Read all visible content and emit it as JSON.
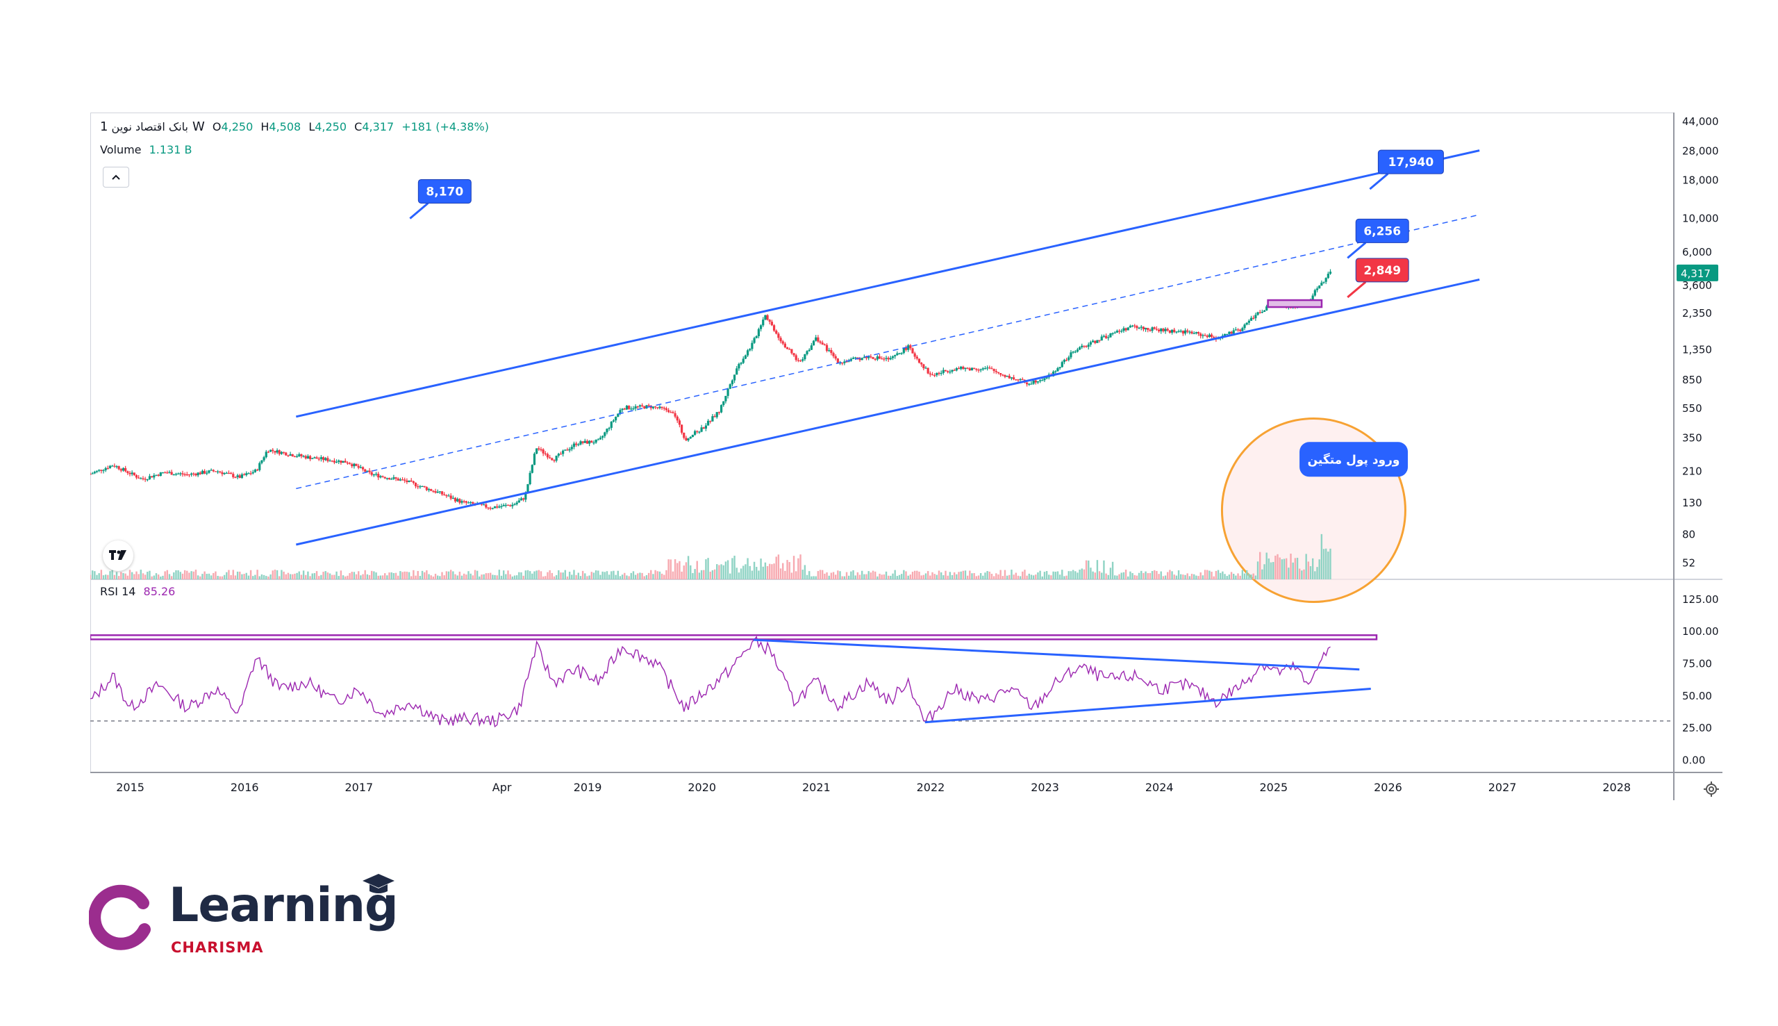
{
  "legend": {
    "symbol": "بانک اقتصاد نوین",
    "interval": "1W",
    "o_label": "O",
    "o": "4,250",
    "h_label": "H",
    "h": "4,508",
    "l_label": "L",
    "l": "4,250",
    "c_label": "C",
    "c": "4,317",
    "change": "+181 (+4.38%)",
    "volume_label": "Volume",
    "volume_value": "1.131 B",
    "rsi_label": "RSI 14",
    "rsi_value": "85.26"
  },
  "colors": {
    "up": "#089981",
    "down": "#f23645",
    "channel": "#2962ff",
    "rsi": "#9c27b0",
    "highlight_ring": "#f7a233",
    "brand_purple": "#9b2d8e",
    "brand_navy": "#1f2a44",
    "brand_red": "#c8102e"
  },
  "icons": {
    "collapse": "chevron-up-icon",
    "tradingview": "tradingview-logo-icon",
    "settings": "gear-icon"
  },
  "chart_data": [
    {
      "type": "candlestick",
      "scale": "log",
      "price_axis_ticks": [
        "44,000",
        "28,000",
        "18,000",
        "10,000",
        "6,000",
        "3,600",
        "2,350",
        "1,350",
        "850",
        "550",
        "350",
        "210",
        "130",
        "80",
        "52"
      ],
      "price_axis_values": [
        44000,
        28000,
        18000,
        10000,
        6000,
        3600,
        2350,
        1350,
        850,
        550,
        350,
        210,
        130,
        80,
        52
      ],
      "current_price_label": "4,317",
      "current_price": 4317,
      "time_axis_ticks": [
        "2015",
        "2016",
        "2017",
        "Apr",
        "2019",
        "2020",
        "2021",
        "2022",
        "2023",
        "2024",
        "2025",
        "2026",
        "2027",
        "2028"
      ],
      "time_axis_values": [
        2015.0,
        2016.0,
        2017.0,
        2018.25,
        2019.0,
        2020.0,
        2021.0,
        2022.0,
        2023.0,
        2024.0,
        2025.0,
        2026.0,
        2027.0,
        2028.0
      ],
      "x_range": [
        2014.65,
        2028.5
      ],
      "y_range": [
        40,
        50000
      ],
      "price_path": [
        {
          "t": 2014.65,
          "p": 200
        },
        {
          "t": 2014.85,
          "p": 230
        },
        {
          "t": 2015.1,
          "p": 185
        },
        {
          "t": 2015.3,
          "p": 205
        },
        {
          "t": 2015.5,
          "p": 198
        },
        {
          "t": 2015.75,
          "p": 210
        },
        {
          "t": 2015.95,
          "p": 190
        },
        {
          "t": 2016.1,
          "p": 210
        },
        {
          "t": 2016.2,
          "p": 290
        },
        {
          "t": 2016.4,
          "p": 270
        },
        {
          "t": 2016.6,
          "p": 255
        },
        {
          "t": 2016.9,
          "p": 240
        },
        {
          "t": 2017.1,
          "p": 200
        },
        {
          "t": 2017.4,
          "p": 180
        },
        {
          "t": 2017.7,
          "p": 150
        },
        {
          "t": 2017.9,
          "p": 130
        },
        {
          "t": 2018.15,
          "p": 120
        },
        {
          "t": 2018.35,
          "p": 125
        },
        {
          "t": 2018.45,
          "p": 140
        },
        {
          "t": 2018.55,
          "p": 300
        },
        {
          "t": 2018.7,
          "p": 250
        },
        {
          "t": 2018.9,
          "p": 320
        },
        {
          "t": 2019.1,
          "p": 330
        },
        {
          "t": 2019.3,
          "p": 550
        },
        {
          "t": 2019.55,
          "p": 560
        },
        {
          "t": 2019.75,
          "p": 520
        },
        {
          "t": 2019.85,
          "p": 340
        },
        {
          "t": 2020.0,
          "p": 400
        },
        {
          "t": 2020.15,
          "p": 520
        },
        {
          "t": 2020.3,
          "p": 1000
        },
        {
          "t": 2020.45,
          "p": 1500
        },
        {
          "t": 2020.55,
          "p": 2300
        },
        {
          "t": 2020.7,
          "p": 1500
        },
        {
          "t": 2020.85,
          "p": 1100
        },
        {
          "t": 2021.0,
          "p": 1600
        },
        {
          "t": 2021.2,
          "p": 1100
        },
        {
          "t": 2021.45,
          "p": 1200
        },
        {
          "t": 2021.65,
          "p": 1150
        },
        {
          "t": 2021.8,
          "p": 1400
        },
        {
          "t": 2022.0,
          "p": 900
        },
        {
          "t": 2022.2,
          "p": 1000
        },
        {
          "t": 2022.5,
          "p": 1000
        },
        {
          "t": 2022.65,
          "p": 900
        },
        {
          "t": 2022.85,
          "p": 800
        },
        {
          "t": 2023.05,
          "p": 900
        },
        {
          "t": 2023.25,
          "p": 1300
        },
        {
          "t": 2023.5,
          "p": 1600
        },
        {
          "t": 2023.75,
          "p": 1900
        },
        {
          "t": 2024.0,
          "p": 1800
        },
        {
          "t": 2024.25,
          "p": 1750
        },
        {
          "t": 2024.5,
          "p": 1600
        },
        {
          "t": 2024.7,
          "p": 1800
        },
        {
          "t": 2024.85,
          "p": 2300
        },
        {
          "t": 2025.0,
          "p": 2700
        },
        {
          "t": 2025.15,
          "p": 2600
        },
        {
          "t": 2025.3,
          "p": 2700
        },
        {
          "t": 2025.4,
          "p": 3600
        },
        {
          "t": 2025.5,
          "p": 4317
        }
      ],
      "channel": {
        "upper": [
          {
            "t": 2016.45,
            "p": 480
          },
          {
            "t": 2026.8,
            "p": 28000
          }
        ],
        "middle": [
          {
            "t": 2016.45,
            "p": 160
          },
          {
            "t": 2026.8,
            "p": 10500
          }
        ],
        "lower": [
          {
            "t": 2016.45,
            "p": 68
          },
          {
            "t": 2026.8,
            "p": 3900
          }
        ]
      },
      "support_zone": {
        "t_start": 2024.95,
        "t_end": 2025.42,
        "p": 2700
      },
      "annotations": [
        {
          "text": "8,170",
          "t": 2017.75,
          "p": 15000,
          "color": "#2962ff"
        },
        {
          "text": "17,940",
          "t": 2026.2,
          "p": 23500,
          "color": "#2962ff"
        },
        {
          "text": "6,256",
          "t": 2025.95,
          "p": 8200,
          "color": "#2962ff"
        },
        {
          "text": "2,849",
          "t": 2025.95,
          "p": 4500,
          "color": "#f23645"
        },
        {
          "text": "ورود پول متگین",
          "t": 2025.7,
          "p": 250,
          "color": "#2962ff"
        }
      ]
    },
    {
      "type": "line",
      "name": "RSI 14",
      "y_axis_ticks": [
        "125.00",
        "100.00",
        "75.00",
        "50.00",
        "25.00",
        "0.00"
      ],
      "y_axis_values": [
        125,
        100,
        75,
        50,
        25,
        0
      ],
      "ylim": [
        -10,
        140
      ],
      "overbought_line": 95,
      "oversold_dashed": 30,
      "rsi_path": [
        {
          "t": 2014.65,
          "v": 45
        },
        {
          "t": 2014.85,
          "v": 65
        },
        {
          "t": 2015.0,
          "v": 40
        },
        {
          "t": 2015.25,
          "v": 58
        },
        {
          "t": 2015.5,
          "v": 40
        },
        {
          "t": 2015.75,
          "v": 55
        },
        {
          "t": 2015.95,
          "v": 35
        },
        {
          "t": 2016.1,
          "v": 80
        },
        {
          "t": 2016.3,
          "v": 55
        },
        {
          "t": 2016.55,
          "v": 60
        },
        {
          "t": 2016.8,
          "v": 45
        },
        {
          "t": 2017.0,
          "v": 55
        },
        {
          "t": 2017.2,
          "v": 35
        },
        {
          "t": 2017.45,
          "v": 45
        },
        {
          "t": 2017.7,
          "v": 30
        },
        {
          "t": 2017.95,
          "v": 32
        },
        {
          "t": 2018.2,
          "v": 30
        },
        {
          "t": 2018.4,
          "v": 40
        },
        {
          "t": 2018.55,
          "v": 88
        },
        {
          "t": 2018.7,
          "v": 60
        },
        {
          "t": 2018.9,
          "v": 70
        },
        {
          "t": 2019.1,
          "v": 60
        },
        {
          "t": 2019.3,
          "v": 88
        },
        {
          "t": 2019.6,
          "v": 75
        },
        {
          "t": 2019.85,
          "v": 40
        },
        {
          "t": 2020.05,
          "v": 55
        },
        {
          "t": 2020.25,
          "v": 70
        },
        {
          "t": 2020.45,
          "v": 92
        },
        {
          "t": 2020.6,
          "v": 85
        },
        {
          "t": 2020.8,
          "v": 45
        },
        {
          "t": 2021.0,
          "v": 60
        },
        {
          "t": 2021.2,
          "v": 42
        },
        {
          "t": 2021.45,
          "v": 60
        },
        {
          "t": 2021.65,
          "v": 45
        },
        {
          "t": 2021.8,
          "v": 62
        },
        {
          "t": 2021.95,
          "v": 28
        },
        {
          "t": 2022.2,
          "v": 55
        },
        {
          "t": 2022.45,
          "v": 45
        },
        {
          "t": 2022.7,
          "v": 55
        },
        {
          "t": 2022.9,
          "v": 40
        },
        {
          "t": 2023.1,
          "v": 60
        },
        {
          "t": 2023.3,
          "v": 72
        },
        {
          "t": 2023.55,
          "v": 62
        },
        {
          "t": 2023.8,
          "v": 65
        },
        {
          "t": 2024.0,
          "v": 55
        },
        {
          "t": 2024.25,
          "v": 58
        },
        {
          "t": 2024.5,
          "v": 45
        },
        {
          "t": 2024.75,
          "v": 60
        },
        {
          "t": 2024.9,
          "v": 75
        },
        {
          "t": 2025.05,
          "v": 68
        },
        {
          "t": 2025.2,
          "v": 72
        },
        {
          "t": 2025.3,
          "v": 55
        },
        {
          "t": 2025.4,
          "v": 78
        },
        {
          "t": 2025.5,
          "v": 85
        }
      ],
      "trendlines": {
        "upper": [
          {
            "t": 2020.45,
            "v": 93
          },
          {
            "t": 2025.75,
            "v": 70
          }
        ],
        "lower": [
          {
            "t": 2021.95,
            "v": 29
          },
          {
            "t": 2025.85,
            "v": 55
          }
        ]
      }
    }
  ],
  "brand": {
    "word": "Learning",
    "sub": "CHARISMA"
  }
}
